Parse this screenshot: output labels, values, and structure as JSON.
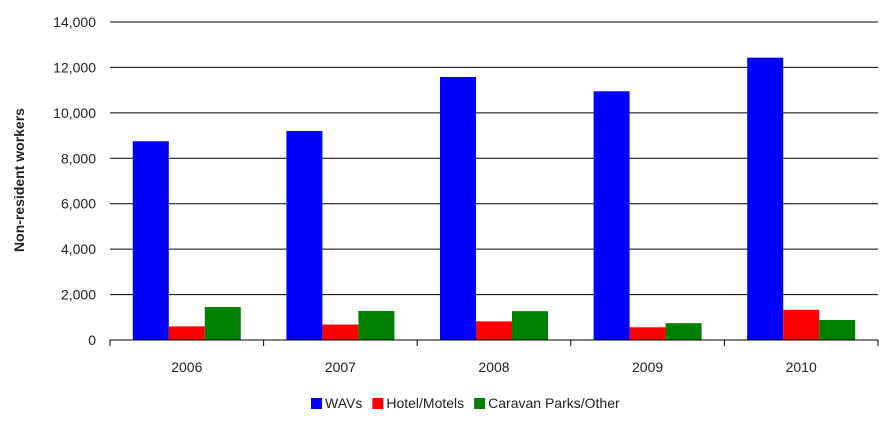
{
  "chart_data": {
    "type": "bar",
    "categories": [
      "2006",
      "2007",
      "2008",
      "2009",
      "2010"
    ],
    "series": [
      {
        "name": "WAVs",
        "color": "#0000FF",
        "values": [
          8750,
          9200,
          11580,
          10950,
          12430
        ]
      },
      {
        "name": "Hotel/Motels",
        "color": "#FF0000",
        "values": [
          600,
          680,
          820,
          560,
          1330
        ]
      },
      {
        "name": "Caravan Parks/Other",
        "color": "#008000",
        "values": [
          1450,
          1280,
          1270,
          740,
          880
        ]
      }
    ],
    "ylabel": "Non-resident workers",
    "xlabel": "",
    "ylim": [
      0,
      14000
    ],
    "yticks": [
      0,
      2000,
      4000,
      6000,
      8000,
      10000,
      12000,
      14000
    ],
    "ytick_labels": [
      "0",
      "2,000",
      "4,000",
      "6,000",
      "8,000",
      "10,000",
      "12,000",
      "14,000"
    ],
    "grid": true,
    "legend_position": "bottom"
  }
}
